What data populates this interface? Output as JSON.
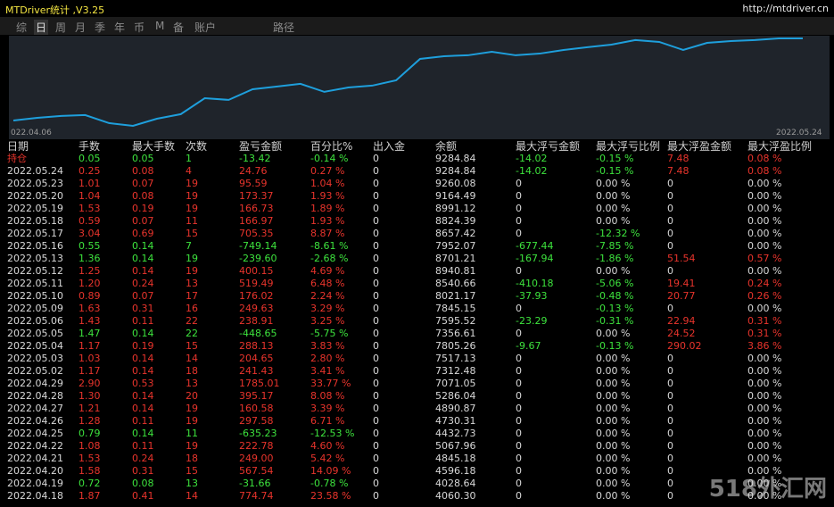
{
  "header": {
    "title": "MTDriver统计 ,V3.25",
    "url": "http://mtdriver.cn"
  },
  "tabs": [
    "综",
    "日",
    "周",
    "月",
    "季",
    "年",
    "币",
    "M",
    "备",
    "账户",
    "路径"
  ],
  "chart_data": {
    "type": "line",
    "color": "#1e9fdc",
    "categories": [
      "022.04.06",
      null,
      null,
      null,
      null,
      null,
      null,
      null,
      null,
      null,
      null,
      null,
      null,
      null,
      null,
      null,
      null,
      null,
      null,
      null,
      null,
      null,
      null,
      null,
      null,
      null,
      null,
      null,
      null,
      null,
      null,
      null,
      null,
      "2022.05.24"
    ],
    "values": [
      3910,
      4090,
      4210,
      4270,
      3740,
      3560,
      4030,
      4330,
      5380,
      5270,
      5970,
      6150,
      6330,
      5800,
      6090,
      6210,
      6560,
      7970,
      8150,
      8210,
      8440,
      8210,
      8320,
      8560,
      8740,
      8910,
      9210,
      9090,
      8560,
      9030,
      9150,
      9210,
      9320,
      9320
    ],
    "ylim": [
      3500,
      9500
    ]
  },
  "table": {
    "header": [
      "日期",
      "手数",
      "最大手数",
      "次数",
      "盈亏金额",
      "百分比%",
      "出入金",
      "余额",
      "最大浮亏金额",
      "最大浮亏比例",
      "最大浮盈金额",
      "最大浮盈比例"
    ],
    "rows": [
      [
        "持仓",
        "0.05",
        "0.05",
        "1",
        "-13.42",
        "-0.14 %",
        "0",
        "9284.84",
        "-14.02",
        "-0.15 %",
        "7.48",
        "0.08 %"
      ],
      [
        "2022.05.24",
        "0.25",
        "0.08",
        "4",
        "24.76",
        "0.27 %",
        "0",
        "9284.84",
        "-14.02",
        "-0.15 %",
        "7.48",
        "0.08 %"
      ],
      [
        "2022.05.23",
        "1.01",
        "0.07",
        "19",
        "95.59",
        "1.04 %",
        "0",
        "9260.08",
        "0",
        "0.00 %",
        "0",
        "0.00 %"
      ],
      [
        "2022.05.20",
        "1.04",
        "0.08",
        "19",
        "173.37",
        "1.93 %",
        "0",
        "9164.49",
        "0",
        "0.00 %",
        "0",
        "0.00 %"
      ],
      [
        "2022.05.19",
        "1.53",
        "0.19",
        "19",
        "166.73",
        "1.89 %",
        "0",
        "8991.12",
        "0",
        "0.00 %",
        "0",
        "0.00 %"
      ],
      [
        "2022.05.18",
        "0.59",
        "0.07",
        "11",
        "166.97",
        "1.93 %",
        "0",
        "8824.39",
        "0",
        "0.00 %",
        "0",
        "0.00 %"
      ],
      [
        "2022.05.17",
        "3.04",
        "0.69",
        "15",
        "705.35",
        "8.87 %",
        "0",
        "8657.42",
        "0",
        "-12.32 %",
        "0",
        "0.00 %"
      ],
      [
        "2022.05.16",
        "0.55",
        "0.14",
        "7",
        "-749.14",
        "-8.61 %",
        "0",
        "7952.07",
        "-677.44",
        "-7.85 %",
        "0",
        "0.00 %"
      ],
      [
        "2022.05.13",
        "1.36",
        "0.14",
        "19",
        "-239.60",
        "-2.68 %",
        "0",
        "8701.21",
        "-167.94",
        "-1.86 %",
        "51.54",
        "0.57 %"
      ],
      [
        "2022.05.12",
        "1.25",
        "0.14",
        "19",
        "400.15",
        "4.69 %",
        "0",
        "8940.81",
        "0",
        "0.00 %",
        "0",
        "0.00 %"
      ],
      [
        "2022.05.11",
        "1.20",
        "0.24",
        "13",
        "519.49",
        "6.48 %",
        "0",
        "8540.66",
        "-410.18",
        "-5.06 %",
        "19.41",
        "0.24 %"
      ],
      [
        "2022.05.10",
        "0.89",
        "0.07",
        "17",
        "176.02",
        "2.24 %",
        "0",
        "8021.17",
        "-37.93",
        "-0.48 %",
        "20.77",
        "0.26 %"
      ],
      [
        "2022.05.09",
        "1.63",
        "0.31",
        "16",
        "249.63",
        "3.29 %",
        "0",
        "7845.15",
        "0",
        "-0.13 %",
        "0",
        "0.00 %"
      ],
      [
        "2022.05.06",
        "1.43",
        "0.11",
        "22",
        "238.91",
        "3.25 %",
        "0",
        "7595.52",
        "-23.29",
        "-0.31 %",
        "22.94",
        "0.31 %"
      ],
      [
        "2022.05.05",
        "1.47",
        "0.14",
        "22",
        "-448.65",
        "-5.75 %",
        "0",
        "7356.61",
        "0",
        "0.00 %",
        "24.52",
        "0.31 %"
      ],
      [
        "2022.05.04",
        "1.17",
        "0.19",
        "15",
        "288.13",
        "3.83 %",
        "0",
        "7805.26",
        "-9.67",
        "-0.13 %",
        "290.02",
        "3.86 %"
      ],
      [
        "2022.05.03",
        "1.03",
        "0.14",
        "14",
        "204.65",
        "2.80 %",
        "0",
        "7517.13",
        "0",
        "0.00 %",
        "0",
        "0.00 %"
      ],
      [
        "2022.05.02",
        "1.17",
        "0.14",
        "18",
        "241.43",
        "3.41 %",
        "0",
        "7312.48",
        "0",
        "0.00 %",
        "0",
        "0.00 %"
      ],
      [
        "2022.04.29",
        "2.90",
        "0.53",
        "13",
        "1785.01",
        "33.77 %",
        "0",
        "7071.05",
        "0",
        "0.00 %",
        "0",
        "0.00 %"
      ],
      [
        "2022.04.28",
        "1.30",
        "0.14",
        "20",
        "395.17",
        "8.08 %",
        "0",
        "5286.04",
        "0",
        "0.00 %",
        "0",
        "0.00 %"
      ],
      [
        "2022.04.27",
        "1.21",
        "0.14",
        "19",
        "160.58",
        "3.39 %",
        "0",
        "4890.87",
        "0",
        "0.00 %",
        "0",
        "0.00 %"
      ],
      [
        "2022.04.26",
        "1.28",
        "0.11",
        "19",
        "297.58",
        "6.71 %",
        "0",
        "4730.31",
        "0",
        "0.00 %",
        "0",
        "0.00 %"
      ],
      [
        "2022.04.25",
        "0.79",
        "0.14",
        "11",
        "-635.23",
        "-12.53 %",
        "0",
        "4432.73",
        "0",
        "0.00 %",
        "0",
        "0.00 %"
      ],
      [
        "2022.04.22",
        "1.08",
        "0.11",
        "19",
        "222.78",
        "4.60 %",
        "0",
        "5067.96",
        "0",
        "0.00 %",
        "0",
        "0.00 %"
      ],
      [
        "2022.04.21",
        "1.53",
        "0.24",
        "18",
        "249.00",
        "5.42 %",
        "0",
        "4845.18",
        "0",
        "0.00 %",
        "0",
        "0.00 %"
      ],
      [
        "2022.04.20",
        "1.58",
        "0.31",
        "15",
        "567.54",
        "14.09 %",
        "0",
        "4596.18",
        "0",
        "0.00 %",
        "0",
        "0.00 %"
      ],
      [
        "2022.04.19",
        "0.72",
        "0.08",
        "13",
        "-31.66",
        "-0.78 %",
        "0",
        "4028.64",
        "0",
        "0.00 %",
        "0",
        "0.00 %"
      ],
      [
        "2022.04.18",
        "1.87",
        "0.41",
        "14",
        "774.74",
        "23.58 %",
        "0",
        "4060.30",
        "0",
        "0.00 %",
        "0",
        "0.00 %"
      ]
    ]
  },
  "watermark": "518外汇网"
}
